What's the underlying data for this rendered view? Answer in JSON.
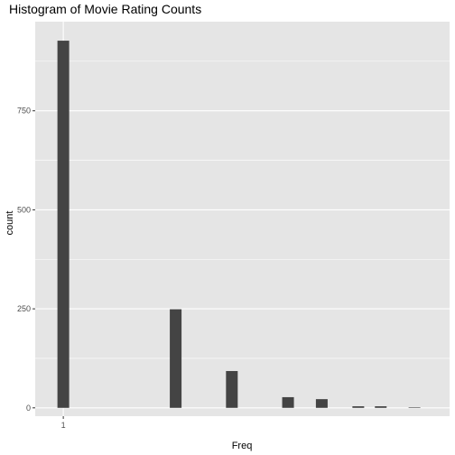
{
  "chart_data": {
    "type": "bar",
    "title": "Histogram of Movie Rating Counts",
    "xlabel": "Freq",
    "ylabel": "count",
    "x_tick_labels": [
      {
        "value": 1,
        "label": "1"
      }
    ],
    "y_ticks": [
      0,
      250,
      500,
      750
    ],
    "ylim": [
      -21,
      975
    ],
    "x_domain": [
      0,
      14.75
    ],
    "bars": [
      {
        "x": 1,
        "value": 927
      },
      {
        "x": 5,
        "value": 249
      },
      {
        "x": 7,
        "value": 93
      },
      {
        "x": 9,
        "value": 27
      },
      {
        "x": 10.2,
        "value": 22
      },
      {
        "x": 11.5,
        "value": 4
      },
      {
        "x": 12.3,
        "value": 4
      },
      {
        "x": 13.5,
        "value": 1
      }
    ],
    "grid": true,
    "bar_color": "#444444",
    "panel_color": "#e5e5e5",
    "grid_color": "#ffffff"
  }
}
